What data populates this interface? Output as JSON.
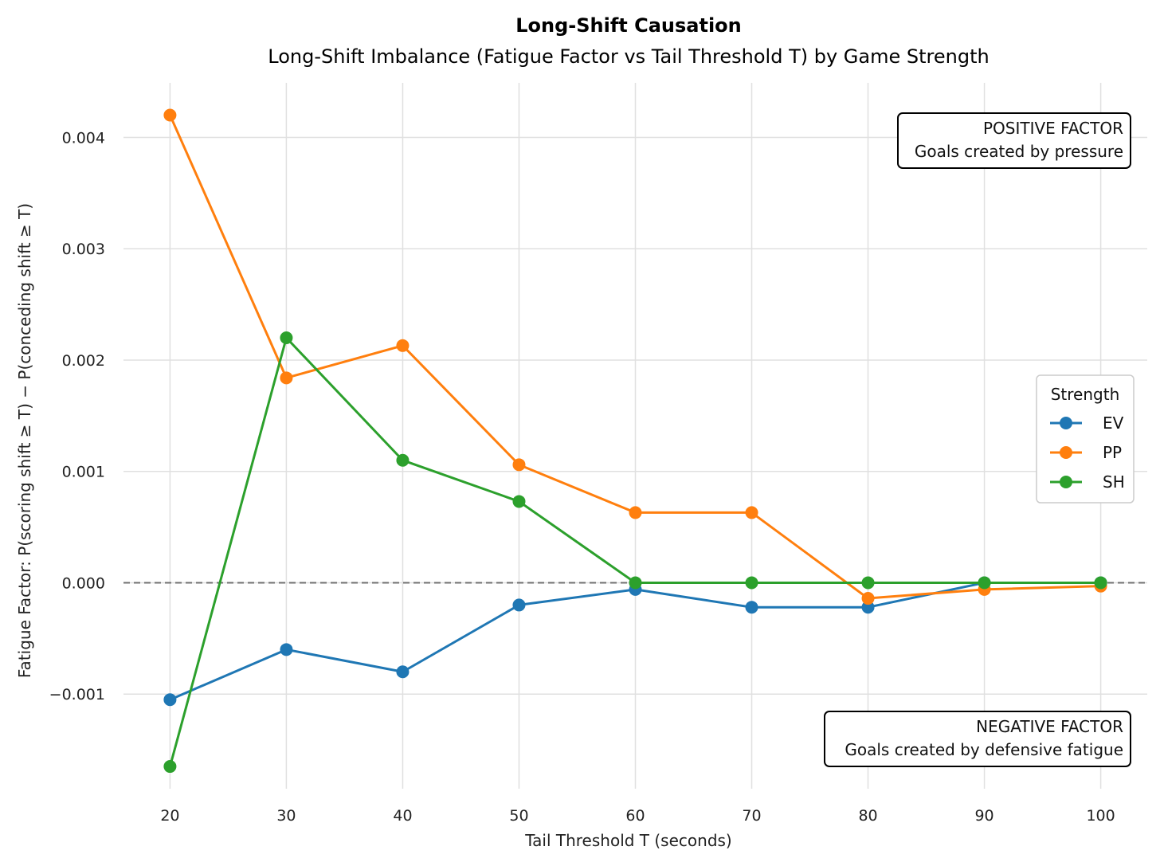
{
  "chart_data": {
    "type": "line",
    "title": "Long-Shift Causation",
    "subtitle": "Long-Shift Imbalance (Fatigue Factor vs Tail Threshold T) by Game Strength",
    "xlabel": "Tail Threshold T (seconds)",
    "ylabel": "Fatigue Factor: P(scoring shift ≥ T) − P(conceding shift ≥ T)",
    "x": [
      20,
      30,
      40,
      50,
      60,
      70,
      80,
      90,
      100
    ],
    "x_tick_labels": [
      "20",
      "30",
      "40",
      "50",
      "60",
      "70",
      "80",
      "90",
      "100"
    ],
    "y_ticks": [
      -0.001,
      0.0,
      0.001,
      0.002,
      0.003,
      0.004
    ],
    "y_tick_labels": [
      "−0.001",
      "0.000",
      "0.001",
      "0.002",
      "0.003",
      "0.004"
    ],
    "xlim": [
      16,
      104
    ],
    "ylim": [
      -0.00185,
      0.00449
    ],
    "grid": true,
    "zero_reference_line": "dashed",
    "legend": {
      "title": "Strength",
      "placement": "right"
    },
    "series": [
      {
        "name": "EV",
        "color": "#1f77b4",
        "values": [
          -0.00105,
          -0.0006,
          -0.0008,
          -0.0002,
          -6e-05,
          -0.00022,
          -0.00022,
          0.0,
          0.0
        ]
      },
      {
        "name": "PP",
        "color": "#ff7f0e",
        "values": [
          0.0042,
          0.00184,
          0.00213,
          0.00106,
          0.00063,
          0.00063,
          -0.00014,
          -6e-05,
          -3e-05
        ]
      },
      {
        "name": "SH",
        "color": "#2ca02c",
        "values": [
          -0.00165,
          0.0022,
          0.0011,
          0.00073,
          0.0,
          0.0,
          0.0,
          0.0,
          0.0
        ]
      }
    ],
    "annotations": [
      {
        "line1": "POSITIVE FACTOR",
        "line2": "Goals created by pressure"
      },
      {
        "line1": "NEGATIVE FACTOR",
        "line2": "Goals created by defensive fatigue"
      }
    ]
  }
}
